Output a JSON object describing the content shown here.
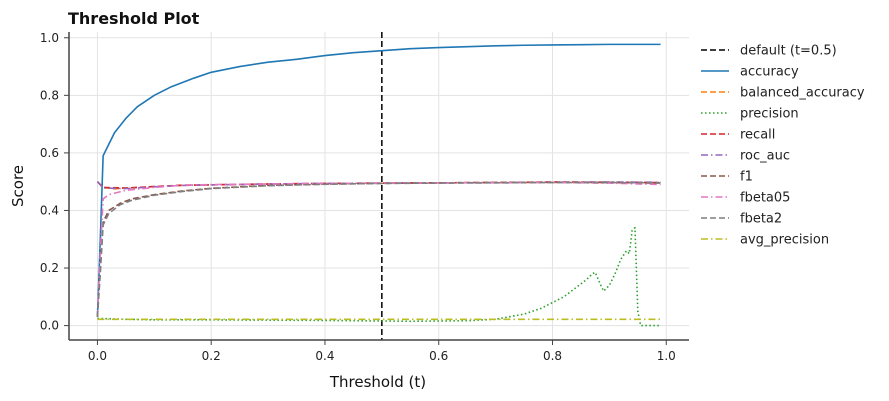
{
  "chart_data": {
    "type": "line",
    "title": "Threshold Plot",
    "xlabel": "Threshold (t)",
    "ylabel": "Score",
    "xlim": [
      -0.05,
      1.04
    ],
    "ylim": [
      -0.05,
      1.02
    ],
    "x_ticks": [
      0.0,
      0.2,
      0.4,
      0.6,
      0.8,
      1.0
    ],
    "x_tick_labels": [
      "0.0",
      "0.2",
      "0.4",
      "0.6",
      "0.8",
      "1.0"
    ],
    "y_ticks": [
      0.0,
      0.2,
      0.4,
      0.6,
      0.8,
      1.0
    ],
    "y_tick_labels": [
      "0.0",
      "0.2",
      "0.4",
      "0.6",
      "0.8",
      "1.0"
    ],
    "grid": true,
    "legend_position": "outside-right",
    "vline": {
      "name": "default (t=0.5)",
      "x": 0.5,
      "color": "#000000",
      "dash": "dashed"
    },
    "series": [
      {
        "name": "accuracy",
        "color": "#1f77b4",
        "dash": "solid",
        "points": [
          [
            0.0,
            0.03
          ],
          [
            0.005,
            0.3
          ],
          [
            0.01,
            0.59
          ],
          [
            0.02,
            0.63
          ],
          [
            0.03,
            0.67
          ],
          [
            0.05,
            0.72
          ],
          [
            0.07,
            0.76
          ],
          [
            0.1,
            0.8
          ],
          [
            0.13,
            0.83
          ],
          [
            0.17,
            0.86
          ],
          [
            0.2,
            0.88
          ],
          [
            0.25,
            0.9
          ],
          [
            0.3,
            0.915
          ],
          [
            0.35,
            0.925
          ],
          [
            0.4,
            0.938
          ],
          [
            0.45,
            0.948
          ],
          [
            0.5,
            0.955
          ],
          [
            0.55,
            0.962
          ],
          [
            0.6,
            0.966
          ],
          [
            0.65,
            0.969
          ],
          [
            0.7,
            0.972
          ],
          [
            0.75,
            0.974
          ],
          [
            0.8,
            0.975
          ],
          [
            0.85,
            0.976
          ],
          [
            0.9,
            0.977
          ],
          [
            0.95,
            0.977
          ],
          [
            0.99,
            0.977
          ]
        ]
      },
      {
        "name": "balanced_accuracy",
        "color": "#ff7f0e",
        "dash": "dashed",
        "points": [
          [
            0.0,
            0.5
          ],
          [
            0.01,
            0.48
          ],
          [
            0.03,
            0.475
          ],
          [
            0.05,
            0.478
          ],
          [
            0.1,
            0.483
          ],
          [
            0.15,
            0.487
          ],
          [
            0.2,
            0.489
          ],
          [
            0.3,
            0.492
          ],
          [
            0.4,
            0.494
          ],
          [
            0.5,
            0.495
          ],
          [
            0.6,
            0.496
          ],
          [
            0.7,
            0.497
          ],
          [
            0.8,
            0.498
          ],
          [
            0.9,
            0.497
          ],
          [
            0.99,
            0.496
          ]
        ]
      },
      {
        "name": "precision",
        "color": "#2ca02c",
        "dash": "dotted",
        "points": [
          [
            0.0,
            0.025
          ],
          [
            0.05,
            0.022
          ],
          [
            0.1,
            0.02
          ],
          [
            0.2,
            0.02
          ],
          [
            0.3,
            0.019
          ],
          [
            0.4,
            0.018
          ],
          [
            0.5,
            0.016
          ],
          [
            0.55,
            0.015
          ],
          [
            0.6,
            0.016
          ],
          [
            0.65,
            0.017
          ],
          [
            0.7,
            0.022
          ],
          [
            0.75,
            0.04
          ],
          [
            0.78,
            0.06
          ],
          [
            0.8,
            0.08
          ],
          [
            0.82,
            0.1
          ],
          [
            0.84,
            0.13
          ],
          [
            0.86,
            0.16
          ],
          [
            0.87,
            0.18
          ],
          [
            0.875,
            0.185
          ],
          [
            0.885,
            0.14
          ],
          [
            0.89,
            0.12
          ],
          [
            0.9,
            0.14
          ],
          [
            0.91,
            0.18
          ],
          [
            0.92,
            0.23
          ],
          [
            0.93,
            0.26
          ],
          [
            0.935,
            0.25
          ],
          [
            0.94,
            0.33
          ],
          [
            0.945,
            0.34
          ],
          [
            0.95,
            0.05
          ],
          [
            0.955,
            0.0
          ],
          [
            0.99,
            0.0
          ]
        ]
      },
      {
        "name": "recall",
        "color": "#d62728",
        "dash": "dashed",
        "points": [
          [
            0.0,
            0.5
          ],
          [
            0.01,
            0.48
          ],
          [
            0.05,
            0.478
          ],
          [
            0.1,
            0.483
          ],
          [
            0.15,
            0.488
          ],
          [
            0.2,
            0.489
          ],
          [
            0.3,
            0.492
          ],
          [
            0.4,
            0.494
          ],
          [
            0.5,
            0.495
          ],
          [
            0.6,
            0.496
          ],
          [
            0.7,
            0.497
          ],
          [
            0.8,
            0.499
          ],
          [
            0.9,
            0.498
          ],
          [
            0.99,
            0.497
          ]
        ]
      },
      {
        "name": "roc_auc",
        "color": "#9467bd",
        "dash": "dashdot",
        "points": [
          [
            0.0,
            0.5
          ],
          [
            0.01,
            0.478
          ],
          [
            0.05,
            0.476
          ],
          [
            0.1,
            0.482
          ],
          [
            0.15,
            0.487
          ],
          [
            0.2,
            0.489
          ],
          [
            0.3,
            0.492
          ],
          [
            0.4,
            0.494
          ],
          [
            0.5,
            0.495
          ],
          [
            0.6,
            0.496
          ],
          [
            0.7,
            0.497
          ],
          [
            0.8,
            0.498
          ],
          [
            0.9,
            0.499
          ],
          [
            0.99,
            0.498
          ]
        ]
      },
      {
        "name": "f1",
        "color": "#8c564b",
        "dash": "dashed",
        "points": [
          [
            0.0,
            0.03
          ],
          [
            0.005,
            0.2
          ],
          [
            0.01,
            0.36
          ],
          [
            0.02,
            0.4
          ],
          [
            0.04,
            0.425
          ],
          [
            0.06,
            0.44
          ],
          [
            0.1,
            0.455
          ],
          [
            0.15,
            0.468
          ],
          [
            0.2,
            0.477
          ],
          [
            0.3,
            0.487
          ],
          [
            0.4,
            0.492
          ],
          [
            0.5,
            0.494
          ],
          [
            0.6,
            0.496
          ],
          [
            0.7,
            0.497
          ],
          [
            0.8,
            0.498
          ],
          [
            0.9,
            0.497
          ],
          [
            0.99,
            0.495
          ]
        ]
      },
      {
        "name": "fbeta05",
        "color": "#e377c2",
        "dash": "dashdot",
        "points": [
          [
            0.0,
            0.03
          ],
          [
            0.005,
            0.25
          ],
          [
            0.01,
            0.44
          ],
          [
            0.02,
            0.455
          ],
          [
            0.05,
            0.47
          ],
          [
            0.1,
            0.48
          ],
          [
            0.15,
            0.488
          ],
          [
            0.2,
            0.49
          ],
          [
            0.3,
            0.492
          ],
          [
            0.4,
            0.494
          ],
          [
            0.5,
            0.495
          ],
          [
            0.6,
            0.496
          ],
          [
            0.7,
            0.496
          ],
          [
            0.8,
            0.497
          ],
          [
            0.9,
            0.495
          ],
          [
            0.99,
            0.49
          ]
        ]
      },
      {
        "name": "fbeta2",
        "color": "#7f7f7f",
        "dash": "dashed",
        "points": [
          [
            0.0,
            0.03
          ],
          [
            0.005,
            0.18
          ],
          [
            0.01,
            0.35
          ],
          [
            0.02,
            0.39
          ],
          [
            0.04,
            0.42
          ],
          [
            0.06,
            0.435
          ],
          [
            0.1,
            0.453
          ],
          [
            0.15,
            0.466
          ],
          [
            0.2,
            0.476
          ],
          [
            0.3,
            0.486
          ],
          [
            0.4,
            0.491
          ],
          [
            0.5,
            0.494
          ],
          [
            0.6,
            0.495
          ],
          [
            0.7,
            0.496
          ],
          [
            0.8,
            0.497
          ],
          [
            0.9,
            0.497
          ],
          [
            0.99,
            0.496
          ]
        ]
      },
      {
        "name": "avg_precision",
        "color": "#bcbd22",
        "dash": "dashdot",
        "points": [
          [
            0.0,
            0.022
          ],
          [
            0.1,
            0.022
          ],
          [
            0.2,
            0.022
          ],
          [
            0.3,
            0.022
          ],
          [
            0.4,
            0.022
          ],
          [
            0.5,
            0.022
          ],
          [
            0.6,
            0.022
          ],
          [
            0.7,
            0.022
          ],
          [
            0.8,
            0.022
          ],
          [
            0.9,
            0.022
          ],
          [
            0.99,
            0.022
          ]
        ]
      }
    ]
  }
}
